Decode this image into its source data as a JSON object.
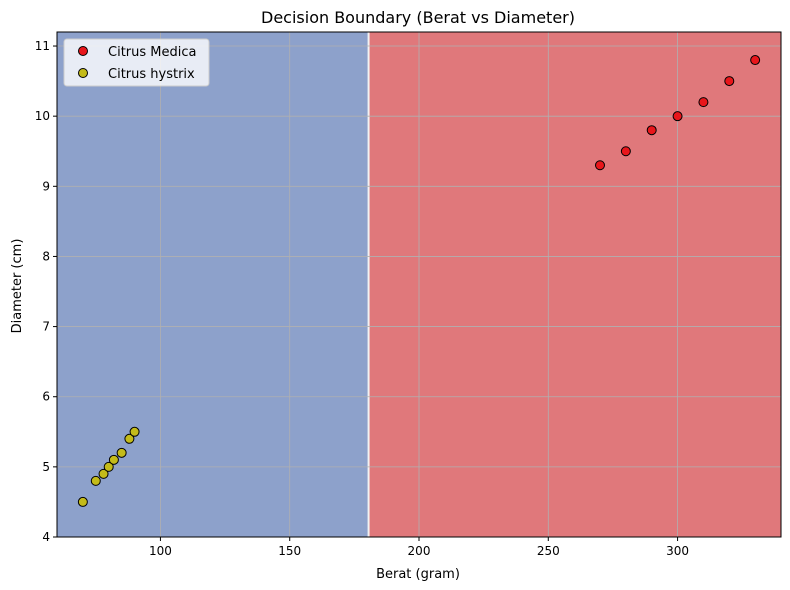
{
  "chart_data": {
    "type": "scatter",
    "title": "Decision Boundary (Berat vs Diameter)",
    "xlabel": "Berat (gram)",
    "ylabel": "Diameter (cm)",
    "xlim": [
      60,
      340
    ],
    "ylim": [
      4,
      11.2
    ],
    "xticks": [
      100,
      150,
      200,
      250,
      300
    ],
    "yticks": [
      4,
      5,
      6,
      7,
      8,
      9,
      10,
      11
    ],
    "grid": true,
    "legend_position": "top-left",
    "decision_boundary_x": 180.5,
    "regions": [
      {
        "from": 60,
        "to": 180.5,
        "color": "#8da1cb"
      },
      {
        "from": 180.5,
        "to": 340,
        "color": "#e0787b"
      }
    ],
    "series": [
      {
        "name": "Citrus Medica",
        "color": "#e8161b",
        "x": [
          270,
          280,
          290,
          300,
          310,
          320,
          330
        ],
        "y": [
          9.3,
          9.5,
          9.8,
          10.0,
          10.2,
          10.5,
          10.8
        ]
      },
      {
        "name": "Citrus hystrix",
        "color": "#c4bb19",
        "x": [
          70,
          75,
          78,
          80,
          82,
          85,
          88,
          90
        ],
        "y": [
          4.5,
          4.8,
          4.9,
          5.0,
          5.1,
          5.2,
          5.4,
          5.5
        ]
      }
    ]
  }
}
